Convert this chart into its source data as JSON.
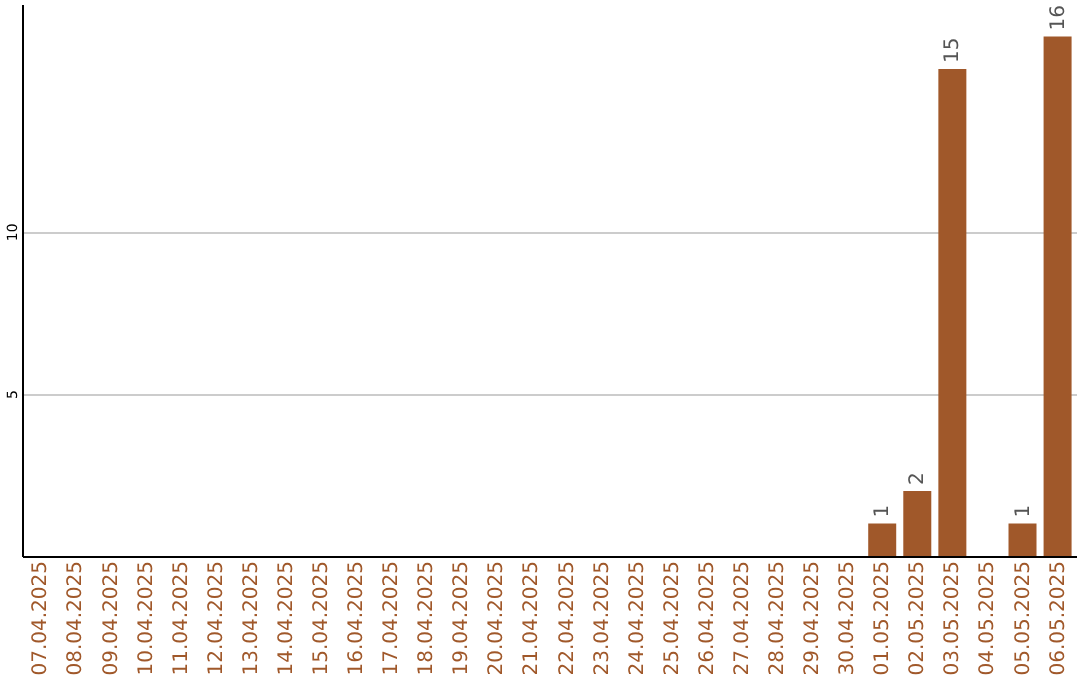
{
  "chart_data": {
    "type": "bar",
    "categories": [
      "07.04.2025",
      "08.04.2025",
      "09.04.2025",
      "10.04.2025",
      "11.04.2025",
      "12.04.2025",
      "13.04.2025",
      "14.04.2025",
      "15.04.2025",
      "16.04.2025",
      "17.04.2025",
      "18.04.2025",
      "19.04.2025",
      "20.04.2025",
      "21.04.2025",
      "22.04.2025",
      "23.04.2025",
      "24.04.2025",
      "25.04.2025",
      "26.04.2025",
      "27.04.2025",
      "28.04.2025",
      "29.04.2025",
      "30.04.2025",
      "01.05.2025",
      "02.05.2025",
      "03.05.2025",
      "04.05.2025",
      "05.05.2025",
      "06.05.2025"
    ],
    "values": [
      0,
      0,
      0,
      0,
      0,
      0,
      0,
      0,
      0,
      0,
      0,
      0,
      0,
      0,
      0,
      0,
      0,
      0,
      0,
      0,
      0,
      0,
      0,
      0,
      1,
      2,
      15,
      0,
      1,
      16
    ],
    "value_labels": [
      null,
      null,
      null,
      null,
      null,
      null,
      null,
      null,
      null,
      null,
      null,
      null,
      null,
      null,
      null,
      null,
      null,
      null,
      null,
      null,
      null,
      null,
      null,
      null,
      "1",
      "2",
      "15",
      null,
      "1",
      "16"
    ],
    "color": "#a0582a",
    "ylim": [
      0,
      17
    ],
    "yticks": [
      5,
      10
    ],
    "grid": "y"
  }
}
